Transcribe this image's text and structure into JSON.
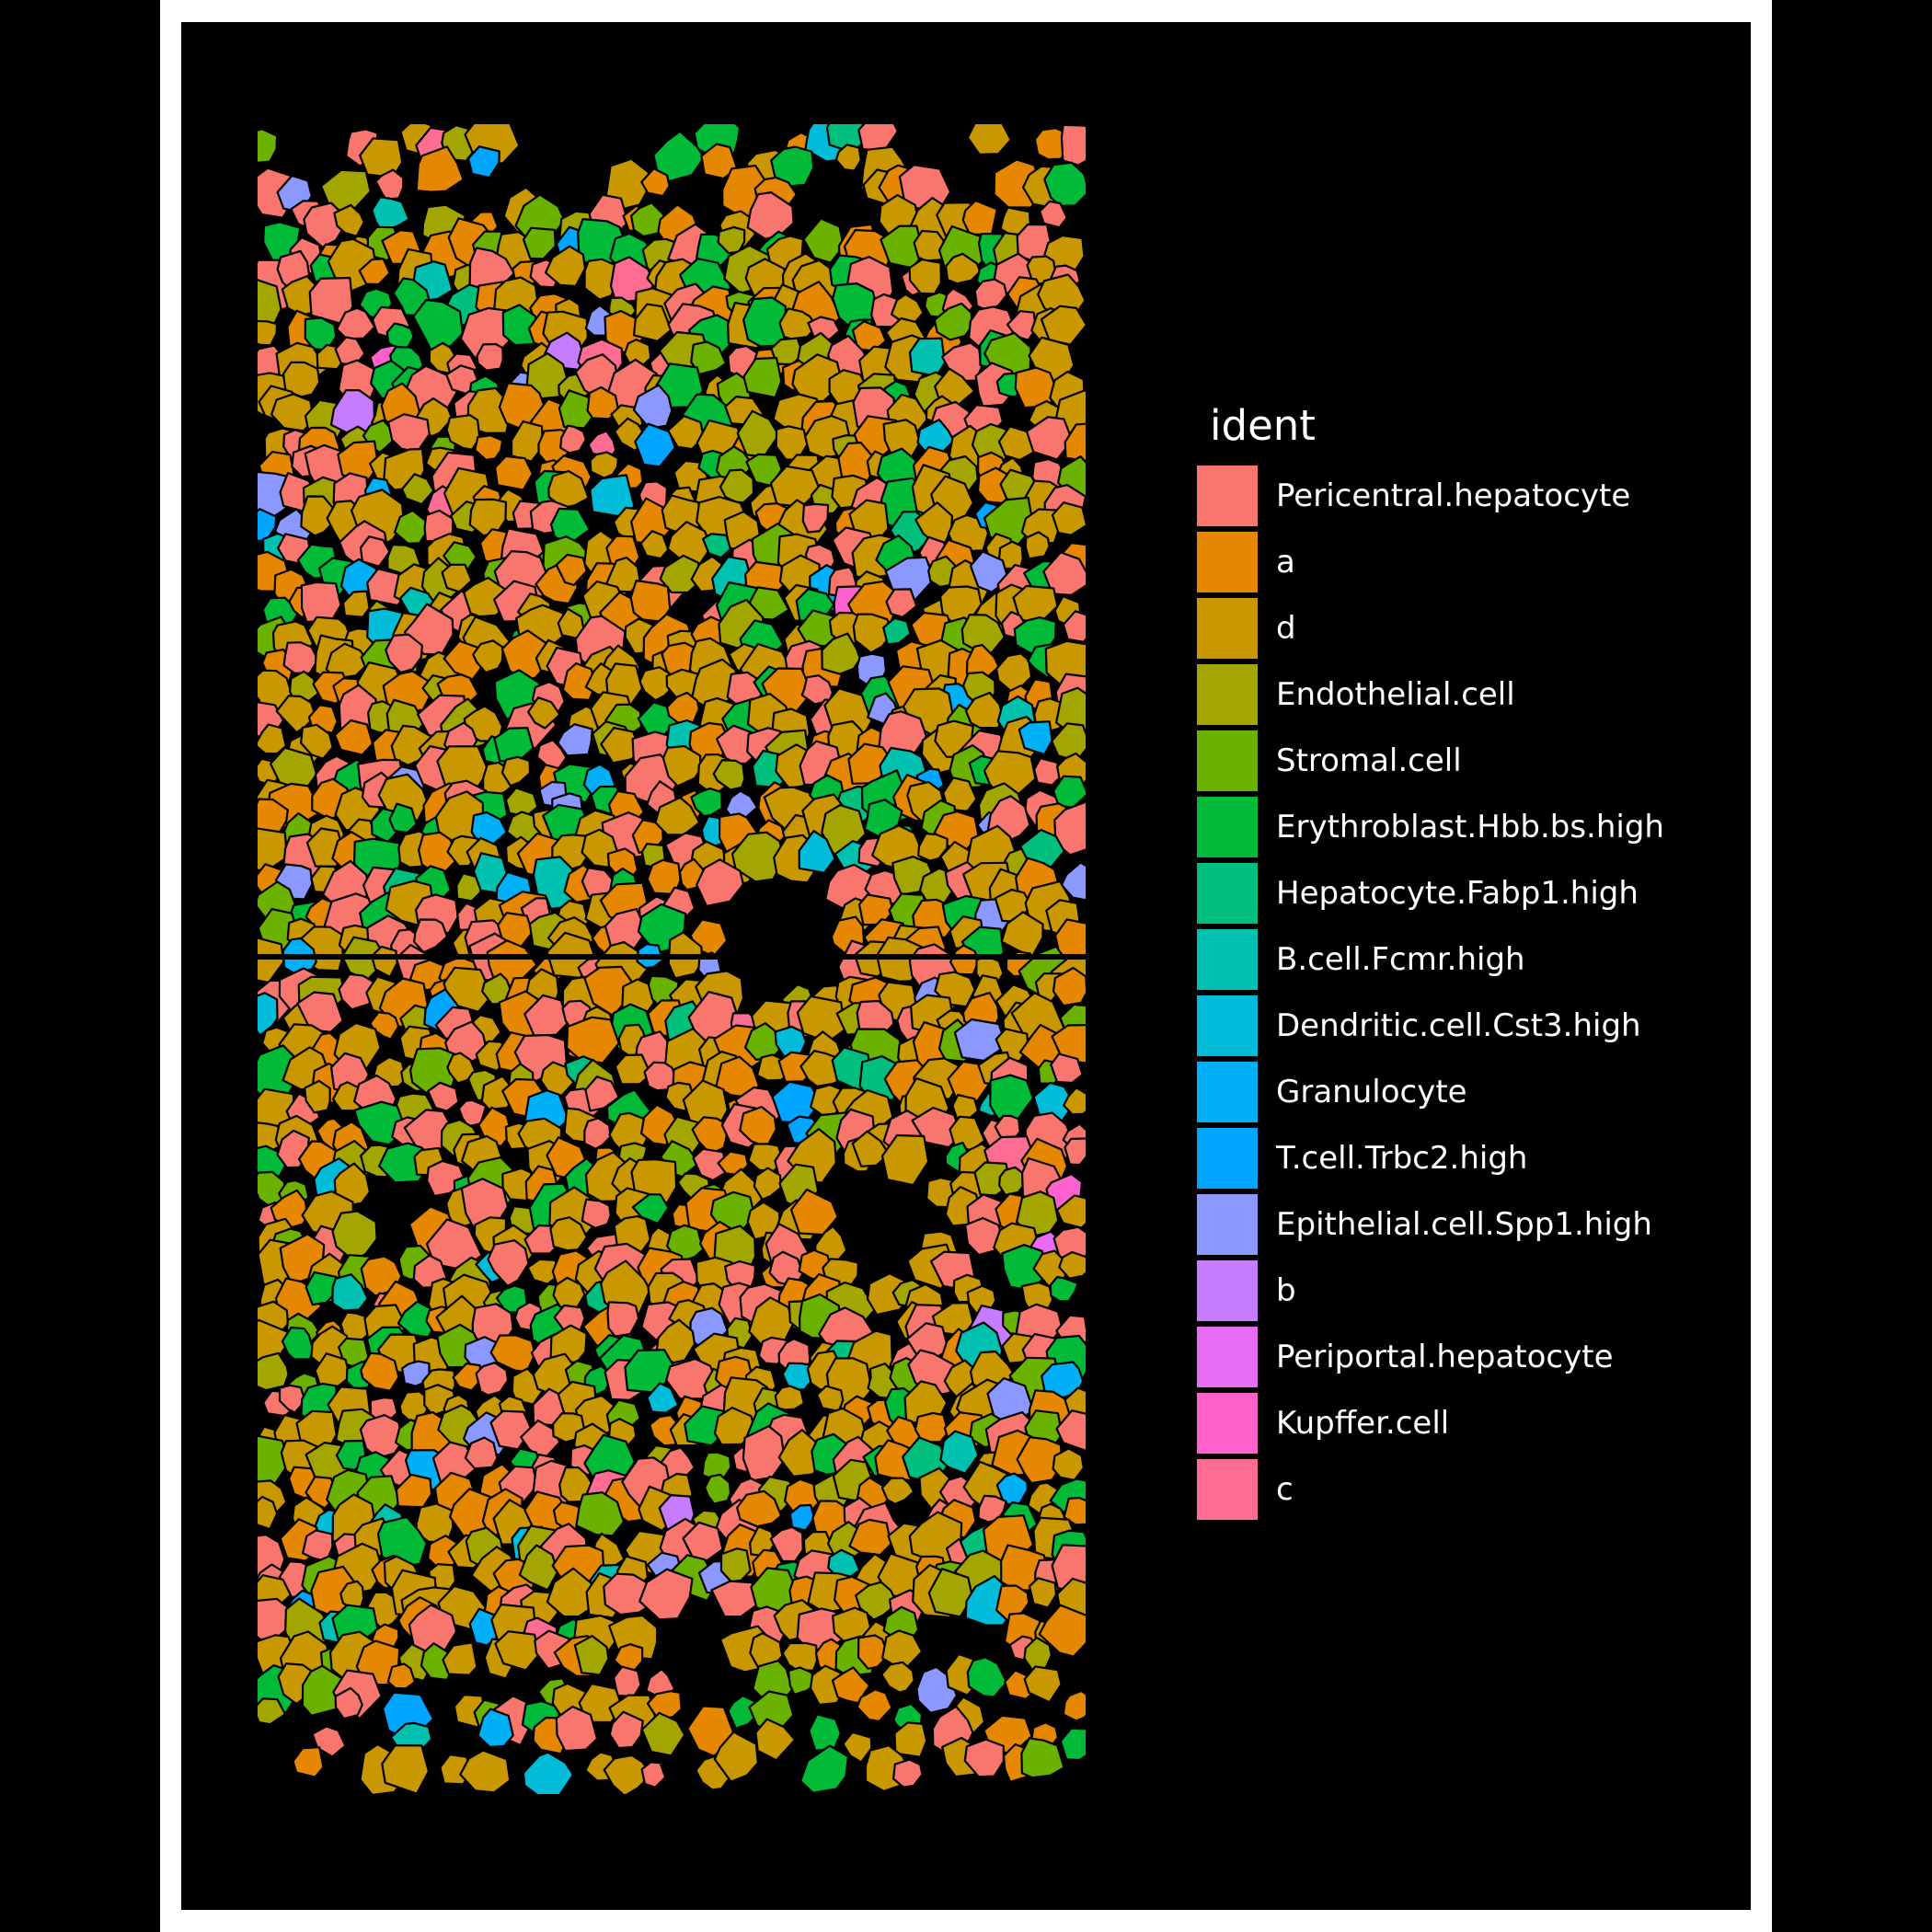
{
  "legend": {
    "title": "ident",
    "items": [
      {
        "label": "Pericentral.hepatocyte",
        "color": "#F8766D"
      },
      {
        "label": "a",
        "color": "#E58700"
      },
      {
        "label": "d",
        "color": "#C99800"
      },
      {
        "label": "Endothelial.cell",
        "color": "#A3A500"
      },
      {
        "label": "Stromal.cell",
        "color": "#6BB100"
      },
      {
        "label": "Erythroblast.Hbb.bs.high",
        "color": "#00BA38"
      },
      {
        "label": "Hepatocyte.Fabp1.high",
        "color": "#00BF7D"
      },
      {
        "label": "B.cell.Fcmr.high",
        "color": "#00C0AF"
      },
      {
        "label": "Dendritic.cell.Cst3.high",
        "color": "#00BCD8"
      },
      {
        "label": "Granulocyte",
        "color": "#00B0F6"
      },
      {
        "label": "T.cell.Trbc2.high",
        "color": "#00A5FF"
      },
      {
        "label": "Epithelial.cell.Spp1.high",
        "color": "#8A98FF"
      },
      {
        "label": "b",
        "color": "#C77CFF"
      },
      {
        "label": "Periportal.hepatocyte",
        "color": "#E76BF3"
      },
      {
        "label": "Kupffer.cell",
        "color": "#FF61CC"
      },
      {
        "label": "c",
        "color": "#FF6C91"
      }
    ]
  },
  "image": {
    "colors": {
      "background": "#000000",
      "frame": "#FFFFFF",
      "cell_outline": "#000000"
    }
  }
}
